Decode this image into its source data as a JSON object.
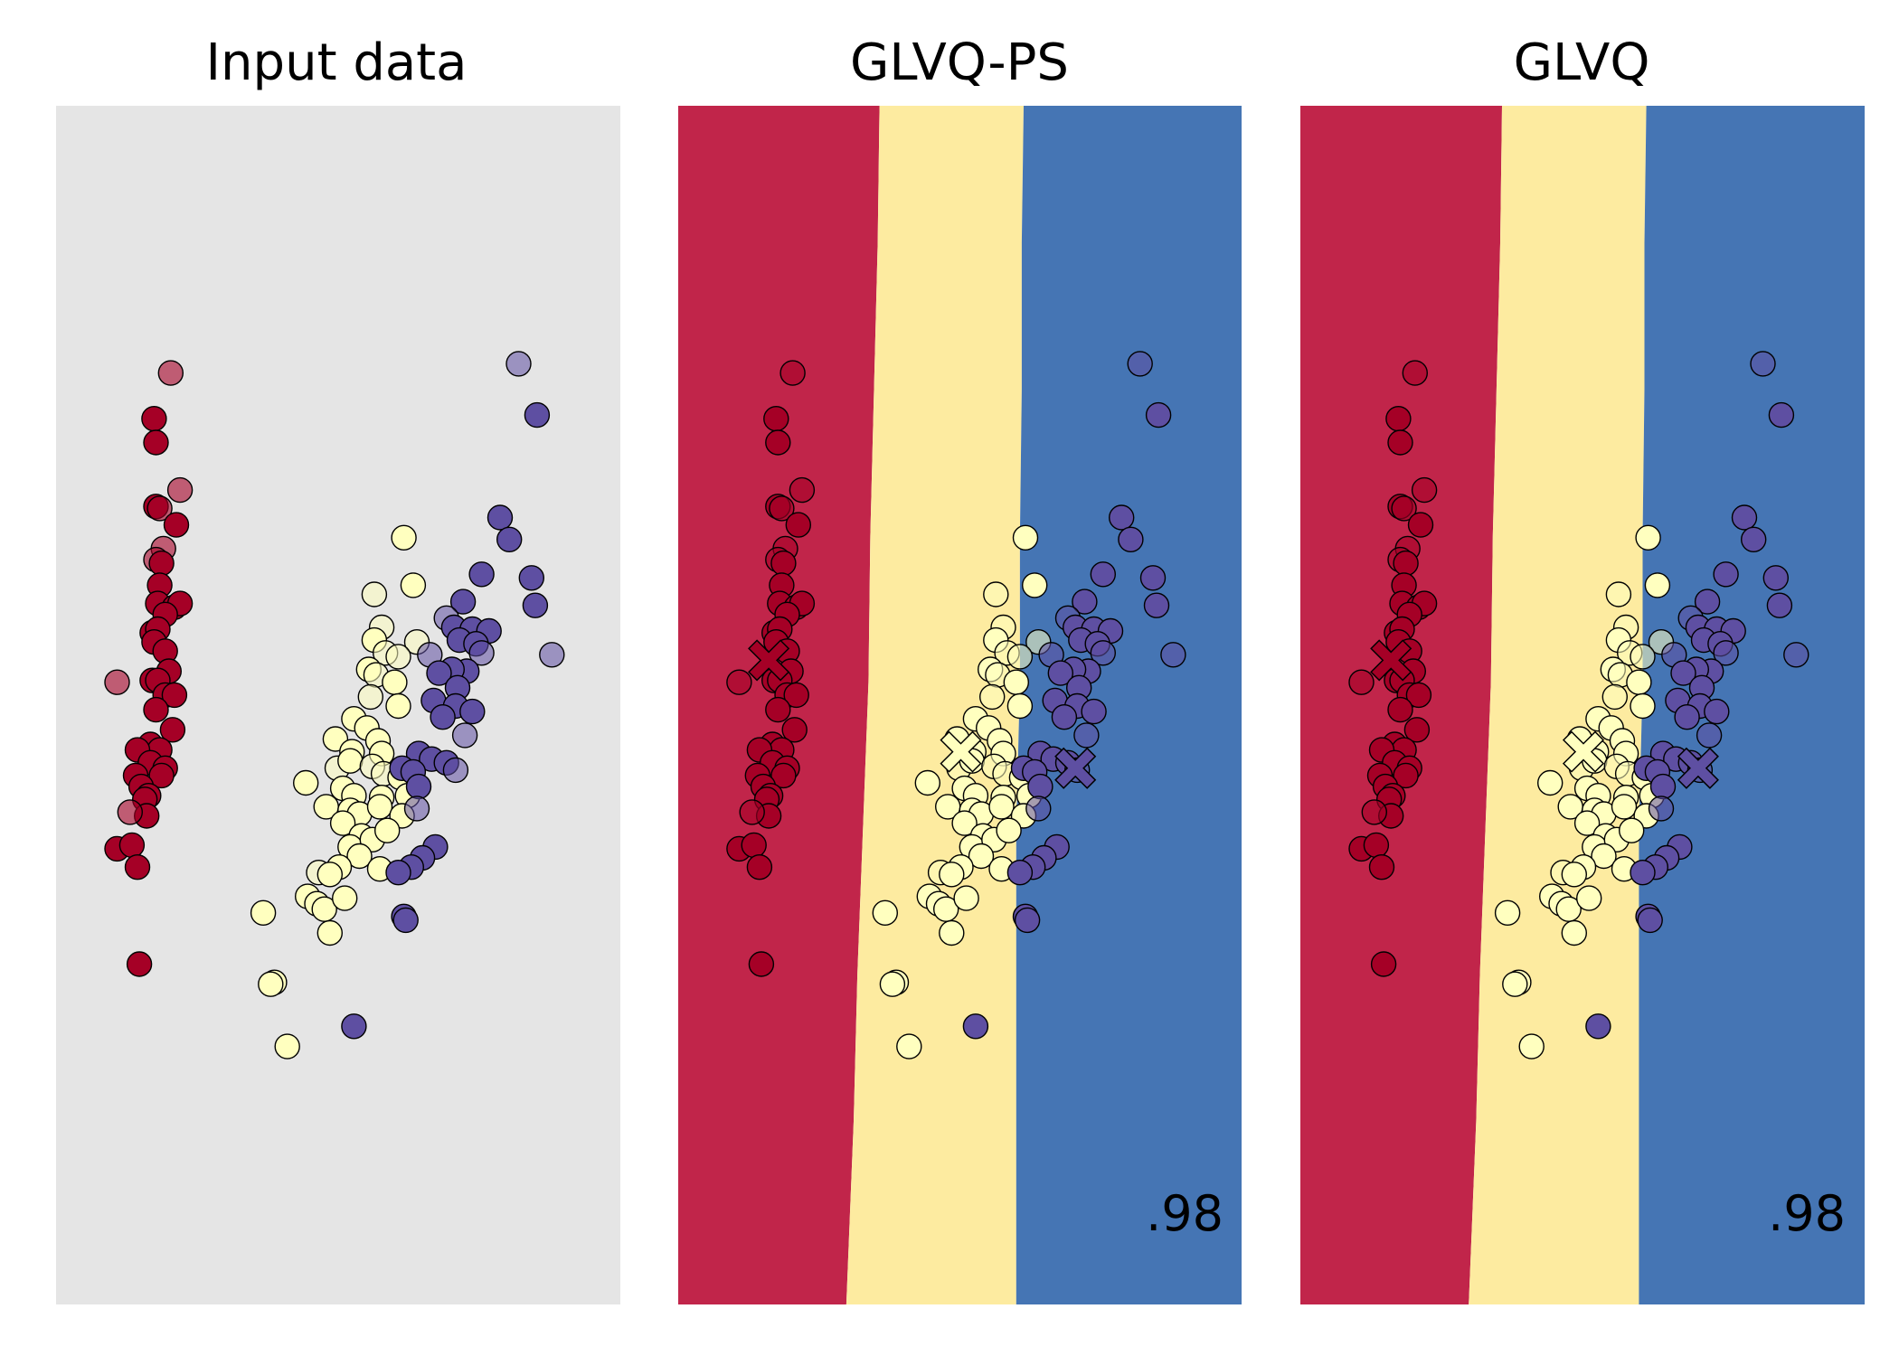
{
  "chart_data": [
    {
      "type": "scatter",
      "title": "Input data",
      "background": "#e5e5e5",
      "xlim": [
        0,
        30.5
      ],
      "ylim": [
        0,
        65.5
      ],
      "show_regions": false,
      "show_prototypes": false,
      "score": ""
    },
    {
      "type": "scatter",
      "title": "GLVQ-PS",
      "xlim": [
        0,
        30.5
      ],
      "ylim": [
        0,
        65.5
      ],
      "show_regions": true,
      "show_prototypes": true,
      "prototypes": [
        {
          "cls": 0,
          "x": 4.9,
          "y": 35.2
        },
        {
          "cls": 1,
          "x": 15.3,
          "y": 30.2
        },
        {
          "cls": 2,
          "x": 21.5,
          "y": 29.3
        }
      ],
      "score": ".98"
    },
    {
      "type": "scatter",
      "title": "GLVQ",
      "xlim": [
        0,
        30.5
      ],
      "ylim": [
        0,
        65.5
      ],
      "show_regions": true,
      "show_prototypes": true,
      "prototypes": [
        {
          "cls": 0,
          "x": 4.9,
          "y": 35.2
        },
        {
          "cls": 1,
          "x": 15.3,
          "y": 30.2
        },
        {
          "cls": 2,
          "x": 21.5,
          "y": 29.3
        }
      ],
      "score": ".98"
    }
  ],
  "region_boundaries": [
    [
      [
        10.9,
        65.5
      ],
      [
        10.8,
        58
      ],
      [
        10.6,
        50
      ],
      [
        10.4,
        42
      ],
      [
        10.3,
        34
      ],
      [
        10.0,
        26
      ],
      [
        9.7,
        18
      ],
      [
        9.5,
        10
      ],
      [
        9.1,
        0
      ]
    ],
    [
      [
        18.7,
        65.5
      ],
      [
        18.6,
        58
      ],
      [
        18.6,
        50
      ],
      [
        18.5,
        42
      ],
      [
        18.5,
        34
      ],
      [
        18.3,
        26
      ],
      [
        18.3,
        18
      ],
      [
        18.3,
        10
      ],
      [
        18.3,
        0
      ]
    ]
  ],
  "colors": {
    "class_points": [
      "#a50026",
      "#ffffbf",
      "#5e4fa2"
    ],
    "regions": [
      "#c1254a",
      "#fdeba0",
      "#4575b4"
    ],
    "point_edge": "#000000"
  },
  "points": [
    {
      "cls": 0,
      "x": 6.2,
      "y": 50.9,
      "a": 0.6
    },
    {
      "cls": 0,
      "x": 5.3,
      "y": 48.4
    },
    {
      "cls": 0,
      "x": 5.4,
      "y": 47.1
    },
    {
      "cls": 0,
      "x": 6.7,
      "y": 44.5,
      "a": 0.6
    },
    {
      "cls": 0,
      "x": 5.4,
      "y": 43.6
    },
    {
      "cls": 0,
      "x": 5.6,
      "y": 43.5,
      "a": 0.6
    },
    {
      "cls": 0,
      "x": 6.5,
      "y": 42.6
    },
    {
      "cls": 0,
      "x": 5.8,
      "y": 41.3,
      "a": 0.6
    },
    {
      "cls": 0,
      "x": 5.4,
      "y": 40.7,
      "a": 0.6
    },
    {
      "cls": 0,
      "x": 5.7,
      "y": 40.5
    },
    {
      "cls": 0,
      "x": 5.6,
      "y": 39.3
    },
    {
      "cls": 0,
      "x": 5.5,
      "y": 38.3
    },
    {
      "cls": 0,
      "x": 6.4,
      "y": 38.1
    },
    {
      "cls": 0,
      "x": 6.7,
      "y": 38.3
    },
    {
      "cls": 0,
      "x": 5.9,
      "y": 37.7
    },
    {
      "cls": 0,
      "x": 5.2,
      "y": 36.7
    },
    {
      "cls": 0,
      "x": 5.5,
      "y": 36.9
    },
    {
      "cls": 0,
      "x": 5.3,
      "y": 36.2
    },
    {
      "cls": 0,
      "x": 5.9,
      "y": 35.7
    },
    {
      "cls": 0,
      "x": 6.1,
      "y": 34.6
    },
    {
      "cls": 0,
      "x": 5.2,
      "y": 34.1
    },
    {
      "cls": 0,
      "x": 5.5,
      "y": 34.1
    },
    {
      "cls": 0,
      "x": 3.3,
      "y": 34.0,
      "a": 0.6
    },
    {
      "cls": 0,
      "x": 5.9,
      "y": 33.3
    },
    {
      "cls": 0,
      "x": 6.4,
      "y": 33.3
    },
    {
      "cls": 0,
      "x": 5.4,
      "y": 32.5
    },
    {
      "cls": 0,
      "x": 6.3,
      "y": 31.4
    },
    {
      "cls": 0,
      "x": 5.1,
      "y": 30.6
    },
    {
      "cls": 0,
      "x": 5.6,
      "y": 30.3
    },
    {
      "cls": 0,
      "x": 4.4,
      "y": 30.3
    },
    {
      "cls": 0,
      "x": 5.1,
      "y": 29.6
    },
    {
      "cls": 0,
      "x": 5.9,
      "y": 29.3
    },
    {
      "cls": 0,
      "x": 4.3,
      "y": 28.9
    },
    {
      "cls": 0,
      "x": 5.7,
      "y": 28.9
    },
    {
      "cls": 0,
      "x": 4.6,
      "y": 28.3
    },
    {
      "cls": 0,
      "x": 5.0,
      "y": 27.8
    },
    {
      "cls": 0,
      "x": 4.8,
      "y": 27.6
    },
    {
      "cls": 0,
      "x": 4.9,
      "y": 26.7
    },
    {
      "cls": 0,
      "x": 4.0,
      "y": 26.9,
      "a": 0.6
    },
    {
      "cls": 0,
      "x": 3.3,
      "y": 24.9
    },
    {
      "cls": 0,
      "x": 4.1,
      "y": 25.1
    },
    {
      "cls": 0,
      "x": 4.4,
      "y": 23.9
    },
    {
      "cls": 0,
      "x": 4.5,
      "y": 18.6
    },
    {
      "cls": 1,
      "x": 18.8,
      "y": 41.9
    },
    {
      "cls": 1,
      "x": 19.3,
      "y": 39.3
    },
    {
      "cls": 1,
      "x": 17.2,
      "y": 38.8,
      "a": 0.55
    },
    {
      "cls": 1,
      "x": 17.6,
      "y": 37.0,
      "a": 0.55
    },
    {
      "cls": 1,
      "x": 17.2,
      "y": 36.3
    },
    {
      "cls": 1,
      "x": 17.8,
      "y": 35.6,
      "a": 0.55
    },
    {
      "cls": 1,
      "x": 19.5,
      "y": 36.2,
      "a": 0.55
    },
    {
      "cls": 1,
      "x": 18.5,
      "y": 35.4,
      "a": 0.55
    },
    {
      "cls": 1,
      "x": 16.9,
      "y": 34.7
    },
    {
      "cls": 1,
      "x": 17.3,
      "y": 34.4,
      "a": 0.55
    },
    {
      "cls": 1,
      "x": 18.3,
      "y": 34.0
    },
    {
      "cls": 1,
      "x": 17.0,
      "y": 33.2,
      "a": 0.55
    },
    {
      "cls": 1,
      "x": 18.5,
      "y": 32.7
    },
    {
      "cls": 1,
      "x": 16.1,
      "y": 32.0
    },
    {
      "cls": 1,
      "x": 16.8,
      "y": 31.5
    },
    {
      "cls": 1,
      "x": 15.1,
      "y": 30.9
    },
    {
      "cls": 1,
      "x": 17.4,
      "y": 30.8
    },
    {
      "cls": 1,
      "x": 16.0,
      "y": 30.2
    },
    {
      "cls": 1,
      "x": 17.6,
      "y": 30.1
    },
    {
      "cls": 1,
      "x": 15.2,
      "y": 29.3,
      "a": 0.55
    },
    {
      "cls": 1,
      "x": 15.9,
      "y": 29.7
    },
    {
      "cls": 1,
      "x": 17.1,
      "y": 29.4,
      "a": 0.55
    },
    {
      "cls": 1,
      "x": 17.7,
      "y": 29.0,
      "a": 0.55
    },
    {
      "cls": 1,
      "x": 18.6,
      "y": 28.8
    },
    {
      "cls": 1,
      "x": 13.5,
      "y": 28.5
    },
    {
      "cls": 1,
      "x": 15.5,
      "y": 28.2
    },
    {
      "cls": 1,
      "x": 16.1,
      "y": 27.8
    },
    {
      "cls": 1,
      "x": 17.6,
      "y": 27.7
    },
    {
      "cls": 1,
      "x": 19.0,
      "y": 27.8
    },
    {
      "cls": 1,
      "x": 14.6,
      "y": 27.2
    },
    {
      "cls": 1,
      "x": 15.9,
      "y": 27.0
    },
    {
      "cls": 1,
      "x": 16.4,
      "y": 26.8
    },
    {
      "cls": 1,
      "x": 17.5,
      "y": 27.2
    },
    {
      "cls": 1,
      "x": 18.7,
      "y": 26.7
    },
    {
      "cls": 1,
      "x": 15.5,
      "y": 26.3
    },
    {
      "cls": 1,
      "x": 16.5,
      "y": 25.6
    },
    {
      "cls": 1,
      "x": 15.9,
      "y": 25.0
    },
    {
      "cls": 1,
      "x": 17.1,
      "y": 25.4
    },
    {
      "cls": 1,
      "x": 17.9,
      "y": 25.9
    },
    {
      "cls": 1,
      "x": 16.4,
      "y": 24.5
    },
    {
      "cls": 1,
      "x": 15.3,
      "y": 23.9
    },
    {
      "cls": 1,
      "x": 14.2,
      "y": 23.6,
      "a": 0.55
    },
    {
      "cls": 1,
      "x": 14.8,
      "y": 23.5
    },
    {
      "cls": 1,
      "x": 17.5,
      "y": 23.8
    },
    {
      "cls": 1,
      "x": 13.6,
      "y": 22.3
    },
    {
      "cls": 1,
      "x": 14.1,
      "y": 21.9
    },
    {
      "cls": 1,
      "x": 14.5,
      "y": 21.6
    },
    {
      "cls": 1,
      "x": 15.6,
      "y": 22.2
    },
    {
      "cls": 1,
      "x": 11.2,
      "y": 21.4
    },
    {
      "cls": 1,
      "x": 14.8,
      "y": 20.3
    },
    {
      "cls": 1,
      "x": 11.8,
      "y": 17.6
    },
    {
      "cls": 1,
      "x": 11.6,
      "y": 17.5
    },
    {
      "cls": 1,
      "x": 12.5,
      "y": 14.1
    },
    {
      "cls": 2,
      "x": 25.0,
      "y": 51.4,
      "a": 0.55
    },
    {
      "cls": 2,
      "x": 26.0,
      "y": 48.6
    },
    {
      "cls": 2,
      "x": 24.0,
      "y": 43.0
    },
    {
      "cls": 2,
      "x": 24.5,
      "y": 41.8
    },
    {
      "cls": 2,
      "x": 25.7,
      "y": 39.7
    },
    {
      "cls": 2,
      "x": 23.0,
      "y": 39.9
    },
    {
      "cls": 2,
      "x": 25.9,
      "y": 38.2
    },
    {
      "cls": 2,
      "x": 22.0,
      "y": 38.4
    },
    {
      "cls": 2,
      "x": 21.1,
      "y": 37.5,
      "a": 0.55
    },
    {
      "cls": 2,
      "x": 21.5,
      "y": 37.0
    },
    {
      "cls": 2,
      "x": 22.5,
      "y": 36.9
    },
    {
      "cls": 2,
      "x": 21.8,
      "y": 36.3
    },
    {
      "cls": 2,
      "x": 23.4,
      "y": 36.8
    },
    {
      "cls": 2,
      "x": 22.7,
      "y": 36.1
    },
    {
      "cls": 2,
      "x": 23.0,
      "y": 35.6,
      "a": 0.55
    },
    {
      "cls": 2,
      "x": 26.8,
      "y": 35.5,
      "a": 0.55
    },
    {
      "cls": 2,
      "x": 20.2,
      "y": 35.5,
      "a": 0.55
    },
    {
      "cls": 2,
      "x": 22.2,
      "y": 34.6
    },
    {
      "cls": 2,
      "x": 21.4,
      "y": 34.7
    },
    {
      "cls": 2,
      "x": 20.7,
      "y": 34.5
    },
    {
      "cls": 2,
      "x": 21.7,
      "y": 33.7
    },
    {
      "cls": 2,
      "x": 20.4,
      "y": 33.0
    },
    {
      "cls": 2,
      "x": 21.6,
      "y": 32.7
    },
    {
      "cls": 2,
      "x": 20.9,
      "y": 32.1
    },
    {
      "cls": 2,
      "x": 22.5,
      "y": 32.4
    },
    {
      "cls": 2,
      "x": 22.1,
      "y": 31.1,
      "a": 0.55
    },
    {
      "cls": 2,
      "x": 19.6,
      "y": 30.1
    },
    {
      "cls": 2,
      "x": 20.3,
      "y": 29.8
    },
    {
      "cls": 2,
      "x": 21.1,
      "y": 29.6
    },
    {
      "cls": 2,
      "x": 21.6,
      "y": 29.2,
      "a": 0.55
    },
    {
      "cls": 2,
      "x": 18.7,
      "y": 29.3
    },
    {
      "cls": 2,
      "x": 19.3,
      "y": 29.1
    },
    {
      "cls": 2,
      "x": 19.6,
      "y": 28.3
    },
    {
      "cls": 2,
      "x": 19.5,
      "y": 27.1,
      "a": 0.55
    },
    {
      "cls": 2,
      "x": 20.5,
      "y": 25.0
    },
    {
      "cls": 2,
      "x": 19.8,
      "y": 24.4
    },
    {
      "cls": 2,
      "x": 19.2,
      "y": 23.9
    },
    {
      "cls": 2,
      "x": 18.5,
      "y": 23.6
    },
    {
      "cls": 2,
      "x": 18.8,
      "y": 21.2
    },
    {
      "cls": 2,
      "x": 18.9,
      "y": 21.0
    },
    {
      "cls": 2,
      "x": 16.1,
      "y": 15.2
    }
  ]
}
